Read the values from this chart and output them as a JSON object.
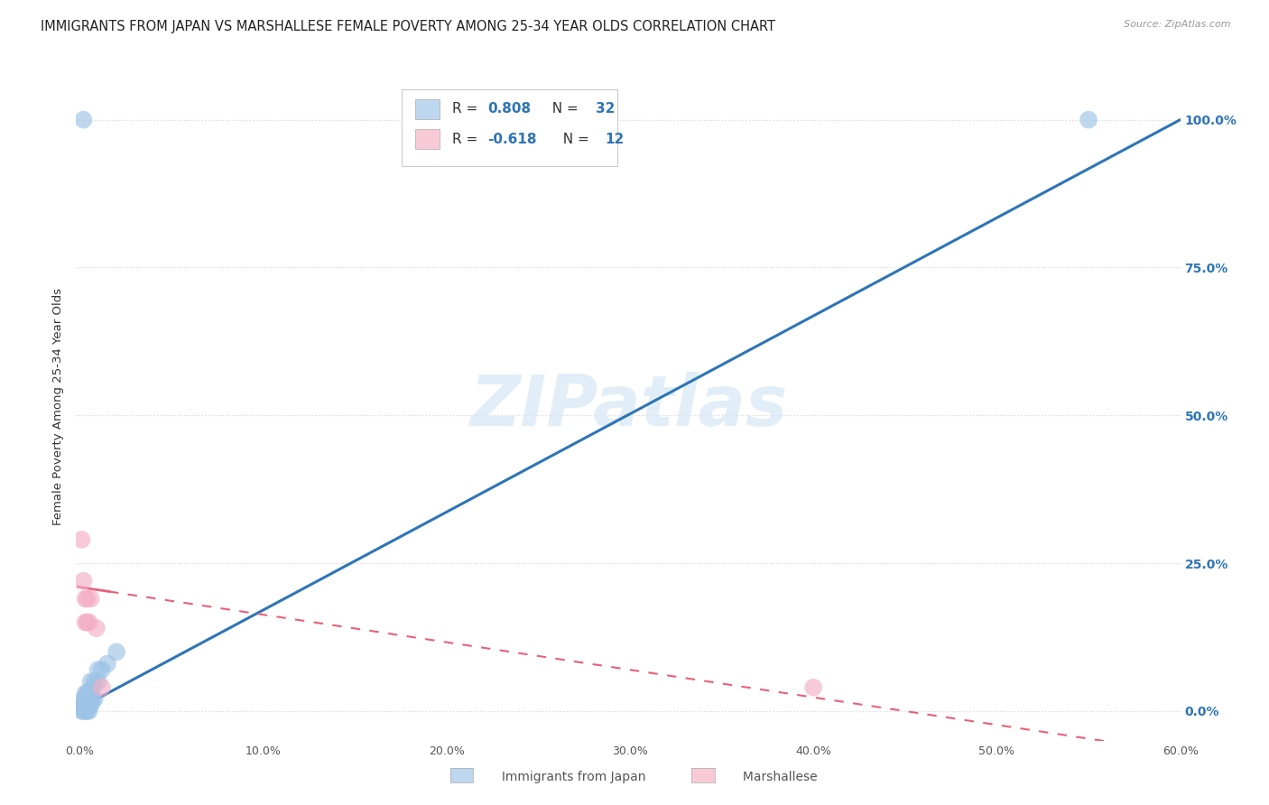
{
  "title": "IMMIGRANTS FROM JAPAN VS MARSHALLESE FEMALE POVERTY AMONG 25-34 YEAR OLDS CORRELATION CHART",
  "source": "Source: ZipAtlas.com",
  "ylabel": "Female Poverty Among 25-34 Year Olds",
  "xlim": [
    -0.002,
    0.6
  ],
  "ylim": [
    -0.05,
    1.08
  ],
  "xtick_labels": [
    "0.0%",
    "10.0%",
    "20.0%",
    "30.0%",
    "40.0%",
    "50.0%",
    "60.0%"
  ],
  "xtick_vals": [
    0.0,
    0.1,
    0.2,
    0.3,
    0.4,
    0.5,
    0.6
  ],
  "ytick_labels_right": [
    "100.0%",
    "75.0%",
    "50.0%",
    "25.0%",
    "0.0%"
  ],
  "ytick_vals": [
    1.0,
    0.75,
    0.5,
    0.25,
    0.0
  ],
  "watermark": "ZIPatlas",
  "blue_scatter": [
    [
      0.001,
      0.0
    ],
    [
      0.001,
      0.01
    ],
    [
      0.002,
      0.0
    ],
    [
      0.002,
      0.01
    ],
    [
      0.002,
      0.02
    ],
    [
      0.003,
      0.0
    ],
    [
      0.003,
      0.01
    ],
    [
      0.003,
      0.02
    ],
    [
      0.003,
      0.03
    ],
    [
      0.004,
      0.0
    ],
    [
      0.004,
      0.01
    ],
    [
      0.004,
      0.02
    ],
    [
      0.004,
      0.03
    ],
    [
      0.005,
      0.0
    ],
    [
      0.005,
      0.01
    ],
    [
      0.005,
      0.02
    ],
    [
      0.005,
      0.03
    ],
    [
      0.006,
      0.01
    ],
    [
      0.006,
      0.02
    ],
    [
      0.006,
      0.03
    ],
    [
      0.006,
      0.05
    ],
    [
      0.007,
      0.02
    ],
    [
      0.007,
      0.04
    ],
    [
      0.008,
      0.02
    ],
    [
      0.008,
      0.05
    ],
    [
      0.01,
      0.05
    ],
    [
      0.01,
      0.07
    ],
    [
      0.012,
      0.07
    ],
    [
      0.015,
      0.08
    ],
    [
      0.02,
      0.1
    ],
    [
      0.002,
      1.0
    ],
    [
      0.55,
      1.0
    ]
  ],
  "pink_scatter": [
    [
      0.001,
      0.29
    ],
    [
      0.002,
      0.22
    ],
    [
      0.003,
      0.19
    ],
    [
      0.003,
      0.15
    ],
    [
      0.004,
      0.15
    ],
    [
      0.004,
      0.19
    ],
    [
      0.005,
      0.15
    ],
    [
      0.006,
      0.19
    ],
    [
      0.009,
      0.14
    ],
    [
      0.012,
      0.04
    ],
    [
      0.4,
      0.04
    ]
  ],
  "blue_line_x": [
    0.0,
    0.6
  ],
  "blue_line_y": [
    0.005,
    1.0
  ],
  "pink_line_x": [
    -0.001,
    0.6
  ],
  "pink_line_y": [
    0.21,
    -0.07
  ],
  "scatter_color_blue": "#9dc3e6",
  "scatter_color_pink": "#f4aec5",
  "line_color_blue": "#2e75b6",
  "line_color_pink": "#e8607a",
  "grid_color": "#d5d5d5",
  "bg_color": "#ffffff",
  "title_color": "#222222",
  "right_axis_color": "#2e75b6",
  "legend_blue_color": "#bdd7ee",
  "legend_pink_color": "#f8cad7",
  "r_n_color": "#2e75b6",
  "title_fontsize": 10.5,
  "tick_fontsize": 9
}
